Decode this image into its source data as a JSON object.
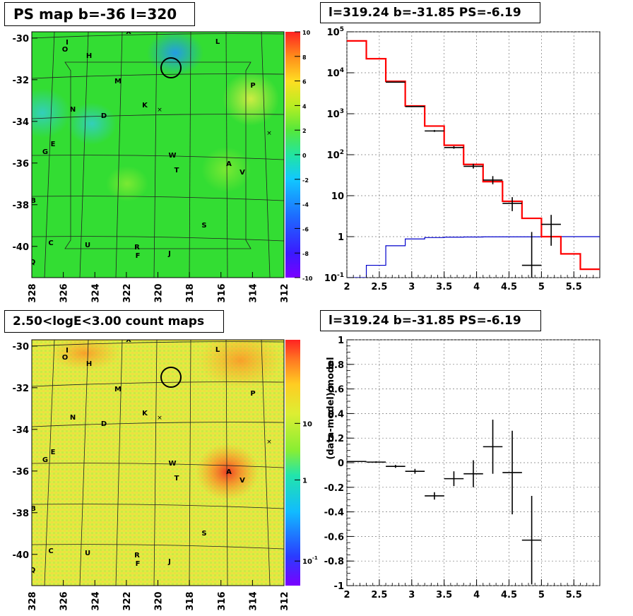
{
  "panels": {
    "ps_map_title": "PS map b=-36 l=320",
    "count_map_title": "2.50<logE<3.00 count maps",
    "spectrum_title": "l=319.24 b=-31.85 PS=-6.19",
    "residual_title": "l=319.24 b=-31.85 PS=-6.19"
  },
  "chart_data": [
    {
      "type": "heatmap",
      "name": "ps-map",
      "title": "PS map b=-36 l=320",
      "xlim": [
        328,
        312
      ],
      "ylim": [
        -41.5,
        -29.7
      ],
      "x_ticks": [
        "328",
        "326",
        "324",
        "322",
        "320",
        "318",
        "316",
        "314",
        "312"
      ],
      "y_ticks": [
        "-30",
        "-32",
        "-34",
        "-36",
        "-38",
        "-40"
      ],
      "colorbar": {
        "ticks": [
          "10",
          "8",
          "6",
          "4",
          "2",
          "0",
          "-2",
          "-4",
          "-6",
          "-8",
          "-10"
        ],
        "range": [
          -10,
          10
        ]
      },
      "source_labels": [
        "X",
        "L",
        "O",
        "I",
        "H",
        "M",
        "P",
        "N",
        "K",
        "D",
        "E",
        "G",
        "W",
        "T",
        "A",
        "V",
        "B",
        "S",
        "C",
        "U",
        "R",
        "F",
        "J",
        "Q"
      ],
      "highlight_circle": {
        "l": 319.24,
        "b": -31.85
      },
      "colors": {
        "background": "#33dd33",
        "cool_spots": "#22bbee",
        "warm_spots": "#ccee33"
      }
    },
    {
      "type": "heatmap",
      "name": "count-map",
      "title": "2.50<logE<3.00 count maps",
      "xlim": [
        328,
        312
      ],
      "ylim": [
        -41.5,
        -29.7
      ],
      "x_ticks": [
        "328",
        "326",
        "324",
        "322",
        "320",
        "318",
        "316",
        "314",
        "312"
      ],
      "y_ticks": [
        "-30",
        "-32",
        "-34",
        "-36",
        "-38",
        "-40"
      ],
      "colorbar": {
        "ticks": [
          "10",
          "1",
          "10^-1"
        ],
        "scale": "log"
      },
      "source_labels": [
        "X",
        "L",
        "O",
        "I",
        "H",
        "M",
        "P",
        "N",
        "K",
        "D",
        "E",
        "G",
        "W",
        "T",
        "A",
        "V",
        "B",
        "S",
        "C",
        "U",
        "R",
        "F",
        "J",
        "Q"
      ],
      "highlight_circle": {
        "l": 319.24,
        "b": -31.85
      },
      "colors": {
        "background": "#ddee44",
        "hot": "#ee4422"
      }
    },
    {
      "type": "line",
      "name": "spectrum",
      "title": "l=319.24 b=-31.85 PS=-6.19",
      "xlim": [
        2,
        5.9
      ],
      "ylim": [
        0.1,
        100000
      ],
      "yscale": "log",
      "x_ticks": [
        "2",
        "2.5",
        "3",
        "3.5",
        "4",
        "4.5",
        "5",
        "5.5"
      ],
      "y_ticks": [
        "10^-1",
        "1",
        "10",
        "10^2",
        "10^3",
        "10^4",
        "10^5"
      ],
      "grid": true,
      "bin_edges": [
        2.0,
        2.3,
        2.6,
        2.9,
        3.2,
        3.5,
        3.8,
        4.1,
        4.4,
        4.7,
        5.0,
        5.3,
        5.6,
        5.9
      ],
      "series": [
        {
          "role": "model",
          "color": "#ff0000",
          "values": [
            60000,
            22000,
            6200,
            1550,
            500,
            170,
            58,
            22,
            7.3,
            2.8,
            1.0,
            0.38,
            0.16
          ]
        },
        {
          "role": "point-source",
          "color": "#0000cc",
          "values": [
            0.1,
            0.2,
            0.6,
            0.88,
            0.95,
            0.97,
            0.98,
            0.99,
            0.99,
            0.99,
            1.0,
            1.0,
            1.0
          ]
        },
        {
          "role": "data",
          "color": "#000000",
          "x": [
            2.75,
            3.05,
            3.35,
            3.65,
            3.95,
            4.25,
            4.55,
            4.85,
            5.15
          ],
          "values": [
            5900,
            1500,
            380,
            150,
            52,
            24,
            6.5,
            0.2,
            2.0
          ],
          "err_low": [
            5800,
            1460,
            360,
            140,
            46,
            19,
            4.2,
            0.09,
            0.6
          ],
          "err_high": [
            6000,
            1540,
            400,
            162,
            60,
            30,
            9.2,
            1.3,
            3.4
          ]
        }
      ]
    },
    {
      "type": "scatter",
      "name": "residual",
      "title": "l=319.24 b=-31.85 PS=-6.19",
      "ylabel": "(data-model)/model",
      "xlim": [
        2,
        5.9
      ],
      "ylim": [
        -1,
        1
      ],
      "x_ticks": [
        "2",
        "2.5",
        "3",
        "3.5",
        "4",
        "4.5",
        "5",
        "5.5"
      ],
      "y_ticks": [
        "1",
        "0.8",
        "0.6",
        "0.4",
        "0.2",
        "0",
        "-0.2",
        "-0.4",
        "-0.6",
        "-0.8",
        "-1"
      ],
      "grid": true,
      "x": [
        2.15,
        2.45,
        2.75,
        3.05,
        3.35,
        3.65,
        3.95,
        4.25,
        4.55,
        4.85
      ],
      "values": [
        0.01,
        0.005,
        -0.03,
        -0.07,
        -0.27,
        -0.13,
        -0.09,
        0.13,
        -0.08,
        -0.63
      ],
      "err": [
        0.003,
        0.006,
        0.012,
        0.02,
        0.03,
        0.06,
        0.11,
        0.22,
        0.34,
        0.36
      ]
    }
  ]
}
